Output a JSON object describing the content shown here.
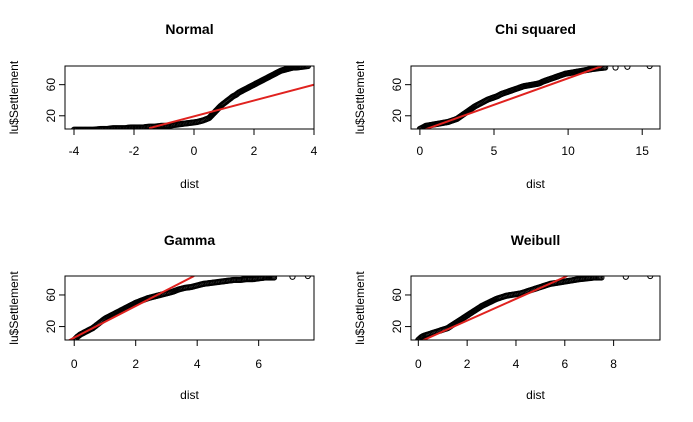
{
  "chart_data": [
    {
      "type": "scatter",
      "title": "Normal",
      "xlabel": "dist",
      "ylabel": "lu$Settlement",
      "xlim": [
        -4.3,
        4.0
      ],
      "ylim": [
        3,
        84
      ],
      "xticks": [
        -4,
        -2,
        0,
        2,
        4
      ],
      "yticks": [
        20,
        60
      ],
      "series": [
        {
          "type": "points",
          "x": [
            -4.0,
            -3.7,
            -3.4,
            -3.1,
            -2.9,
            -2.7,
            -2.5,
            -2.3,
            -2.1,
            -1.9,
            -1.7,
            -1.5,
            -1.3,
            -1.1,
            -0.9,
            -0.7,
            -0.5,
            -0.3,
            -0.1,
            0.1,
            0.3,
            0.5,
            0.6,
            0.7,
            0.8,
            0.9,
            1.0,
            1.1,
            1.2,
            1.3,
            1.4,
            1.5,
            1.6,
            1.7,
            1.8,
            1.9,
            2.0,
            2.1,
            2.2,
            2.3,
            2.4,
            2.5,
            2.6,
            2.7,
            2.8,
            2.9,
            3.0,
            3.1,
            3.2,
            3.3,
            3.4,
            3.6,
            3.8
          ],
          "y": [
            2,
            2,
            2,
            3,
            3,
            4,
            4,
            4,
            5,
            5,
            5,
            6,
            6,
            7,
            7,
            8,
            9,
            10,
            11,
            12,
            14,
            17,
            21,
            25,
            29,
            33,
            36,
            39,
            42,
            45,
            47,
            50,
            52,
            54,
            56,
            58,
            60,
            62,
            64,
            66,
            68,
            70,
            72,
            74,
            76,
            78,
            79,
            80,
            81,
            82,
            82,
            83,
            84
          ]
        },
        {
          "type": "line",
          "x": [
            -1.5,
            4.0
          ],
          "y": [
            4,
            60
          ]
        }
      ]
    },
    {
      "type": "scatter",
      "title": "Chi squared",
      "xlabel": "dist",
      "ylabel": "lu$Settlement",
      "xlim": [
        -0.6,
        16.2
      ],
      "ylim": [
        3,
        84
      ],
      "xticks": [
        0,
        5,
        10,
        15
      ],
      "yticks": [
        20,
        60
      ],
      "series": [
        {
          "type": "points",
          "x": [
            0,
            0.2,
            0.4,
            0.7,
            1.0,
            1.3,
            1.6,
            1.9,
            2.2,
            2.5,
            2.8,
            3.1,
            3.4,
            3.7,
            4.0,
            4.3,
            4.6,
            4.9,
            5.2,
            5.5,
            5.8,
            6.1,
            6.4,
            6.7,
            7.0,
            7.3,
            7.6,
            7.9,
            8.1,
            8.3,
            8.6,
            8.9,
            9.2,
            9.5,
            9.8,
            10.1,
            10.4,
            10.7,
            11.0,
            11.3,
            11.6,
            12.0,
            12.5,
            13.2,
            14.0,
            15.5
          ],
          "y": [
            3,
            5,
            7,
            8,
            9,
            10,
            11,
            12,
            14,
            16,
            20,
            24,
            28,
            32,
            35,
            38,
            41,
            43,
            45,
            48,
            50,
            52,
            54,
            56,
            58,
            59,
            60,
            61,
            62,
            64,
            66,
            68,
            70,
            72,
            74,
            75,
            76,
            77,
            78,
            79,
            80,
            81,
            82,
            82,
            83,
            84
          ]
        },
        {
          "type": "line",
          "x": [
            0,
            12.3
          ],
          "y": [
            0,
            84
          ]
        }
      ]
    },
    {
      "type": "scatter",
      "title": "Gamma",
      "xlabel": "dist",
      "ylabel": "lu$Settlement",
      "xlim": [
        -0.3,
        7.8
      ],
      "ylim": [
        3,
        84
      ],
      "xticks": [
        0,
        2,
        4,
        6
      ],
      "yticks": [
        20,
        60
      ],
      "series": [
        {
          "type": "points",
          "x": [
            0,
            0.1,
            0.2,
            0.3,
            0.4,
            0.5,
            0.6,
            0.7,
            0.8,
            0.9,
            1.0,
            1.2,
            1.4,
            1.6,
            1.8,
            2.0,
            2.2,
            2.4,
            2.6,
            2.8,
            3.0,
            3.2,
            3.4,
            3.6,
            3.8,
            4.0,
            4.2,
            4.4,
            4.6,
            4.8,
            5.0,
            5.2,
            5.4,
            5.6,
            5.8,
            6.0,
            6.2,
            6.5,
            7.1,
            7.6
          ],
          "y": [
            3,
            7,
            10,
            12,
            14,
            16,
            18,
            21,
            24,
            27,
            30,
            34,
            38,
            42,
            46,
            50,
            53,
            56,
            58,
            60,
            62,
            64,
            67,
            69,
            70,
            72,
            74,
            75,
            76,
            77,
            78,
            79,
            79,
            80,
            80,
            81,
            82,
            82,
            83,
            84
          ]
        },
        {
          "type": "line",
          "x": [
            -0.3,
            3.9
          ],
          "y": [
            0,
            84
          ]
        }
      ]
    },
    {
      "type": "scatter",
      "title": "Weibull",
      "xlabel": "dist",
      "ylabel": "lu$Settlement",
      "xlim": [
        -0.3,
        9.9
      ],
      "ylim": [
        3,
        84
      ],
      "xticks": [
        0,
        2,
        4,
        6,
        8
      ],
      "yticks": [
        20,
        60
      ],
      "series": [
        {
          "type": "points",
          "x": [
            0,
            0.1,
            0.2,
            0.4,
            0.6,
            0.8,
            1.0,
            1.2,
            1.4,
            1.6,
            1.8,
            2.0,
            2.2,
            2.4,
            2.6,
            2.8,
            3.0,
            3.2,
            3.4,
            3.6,
            3.8,
            4.0,
            4.2,
            4.4,
            4.6,
            4.8,
            5.0,
            5.2,
            5.4,
            5.6,
            5.8,
            6.0,
            6.2,
            6.4,
            6.6,
            6.9,
            7.2,
            7.5,
            8.5,
            9.5
          ],
          "y": [
            3,
            6,
            8,
            10,
            12,
            14,
            16,
            18,
            22,
            26,
            30,
            34,
            38,
            42,
            46,
            49,
            52,
            55,
            57,
            59,
            60,
            61,
            62,
            64,
            66,
            68,
            70,
            72,
            74,
            75,
            76,
            77,
            78,
            79,
            80,
            81,
            82,
            82,
            83,
            84
          ]
        },
        {
          "type": "line",
          "x": [
            0,
            6.1
          ],
          "y": [
            0,
            84
          ]
        }
      ]
    }
  ]
}
